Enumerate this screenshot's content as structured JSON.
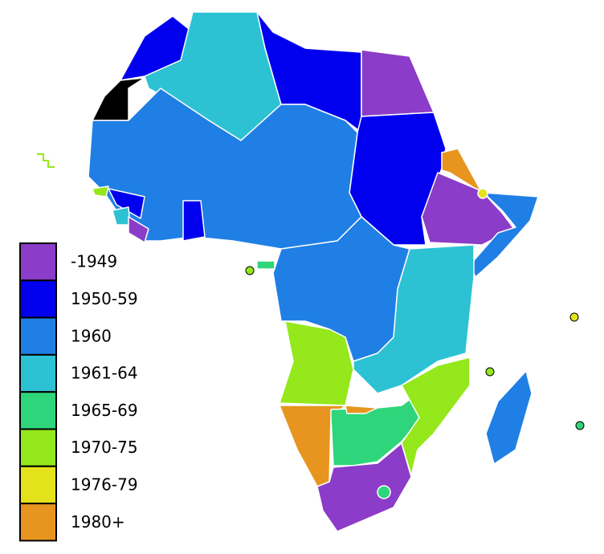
{
  "legend": {
    "items": [
      {
        "label": "-1949",
        "color": "#8b3cc8"
      },
      {
        "label": "1950-59",
        "color": "#0000ee"
      },
      {
        "label": "1960",
        "color": "#1f7fe5"
      },
      {
        "label": "1961-64",
        "color": "#2cc2d3"
      },
      {
        "label": "1965-69",
        "color": "#2fd57a"
      },
      {
        "label": "1970-75",
        "color": "#94e81b"
      },
      {
        "label": "1976-79",
        "color": "#e4e31b"
      },
      {
        "label": "1980+",
        "color": "#e7951f"
      }
    ]
  }
}
